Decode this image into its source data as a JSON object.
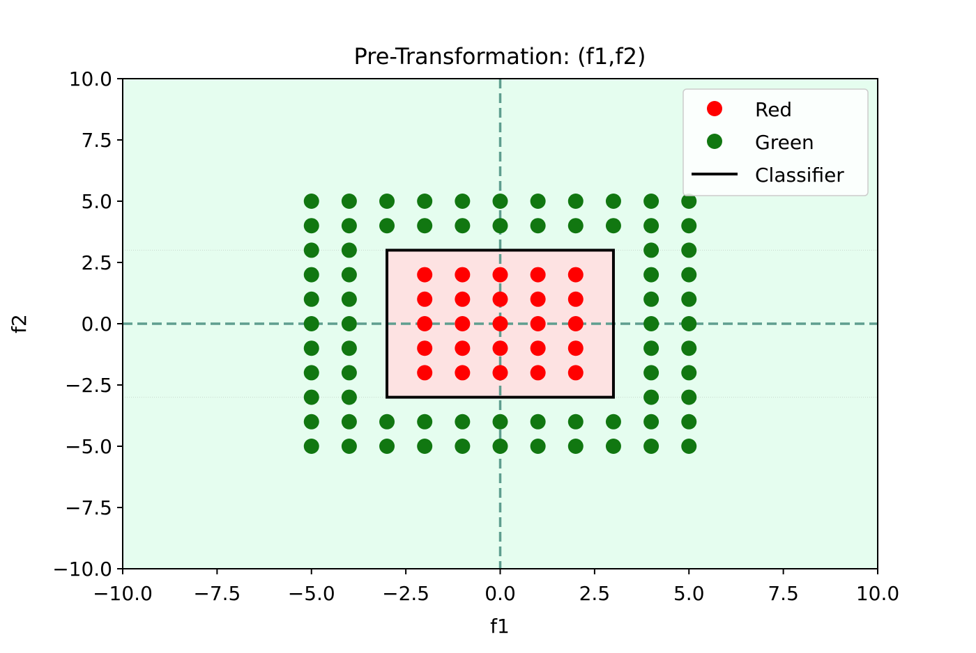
{
  "chart_data": {
    "type": "scatter",
    "title": "Pre-Transformation: (f1,f2)",
    "xlabel": "f1",
    "ylabel": "f2",
    "xlim": [
      -10,
      10
    ],
    "ylim": [
      -10,
      10
    ],
    "xticks": [
      -10,
      -7.5,
      -5,
      -2.5,
      0,
      2.5,
      5,
      7.5,
      10
    ],
    "yticks": [
      -10,
      -7.5,
      -5,
      -2.5,
      0,
      2.5,
      5,
      7.5,
      10
    ],
    "xtick_labels": [
      "−10.0",
      "−7.5",
      "−5.0",
      "−2.5",
      "0.0",
      "2.5",
      "5.0",
      "7.5",
      "10.0"
    ],
    "ytick_labels": [
      "−10.0",
      "−7.5",
      "−5.0",
      "−2.5",
      "0.0",
      "2.5",
      "5.0",
      "7.5",
      "10.0"
    ],
    "background_region_color": "#e5fdef",
    "classifier_region_color": "#fde2e2",
    "axis_line_color": "#5f9e8f",
    "legend_position": "top-right",
    "series": [
      {
        "name": "Red",
        "color": "#ff0000",
        "points": [
          [
            -2,
            2
          ],
          [
            -1,
            2
          ],
          [
            0,
            2
          ],
          [
            1,
            2
          ],
          [
            2,
            2
          ],
          [
            -2,
            1
          ],
          [
            -1,
            1
          ],
          [
            0,
            1
          ],
          [
            1,
            1
          ],
          [
            2,
            1
          ],
          [
            -2,
            0
          ],
          [
            -1,
            0
          ],
          [
            0,
            0
          ],
          [
            1,
            0
          ],
          [
            2,
            0
          ],
          [
            -2,
            -1
          ],
          [
            -1,
            -1
          ],
          [
            0,
            -1
          ],
          [
            1,
            -1
          ],
          [
            2,
            -1
          ],
          [
            -2,
            -2
          ],
          [
            -1,
            -2
          ],
          [
            0,
            -2
          ],
          [
            1,
            -2
          ],
          [
            2,
            -2
          ]
        ]
      },
      {
        "name": "Green",
        "color": "#117711",
        "points": [
          [
            -5,
            5
          ],
          [
            -4,
            5
          ],
          [
            -3,
            5
          ],
          [
            -2,
            5
          ],
          [
            -1,
            5
          ],
          [
            0,
            5
          ],
          [
            1,
            5
          ],
          [
            2,
            5
          ],
          [
            3,
            5
          ],
          [
            4,
            5
          ],
          [
            5,
            5
          ],
          [
            -5,
            4
          ],
          [
            -4,
            4
          ],
          [
            -3,
            4
          ],
          [
            -2,
            4
          ],
          [
            -1,
            4
          ],
          [
            0,
            4
          ],
          [
            1,
            4
          ],
          [
            2,
            4
          ],
          [
            3,
            4
          ],
          [
            4,
            4
          ],
          [
            5,
            4
          ],
          [
            -5,
            3
          ],
          [
            -4,
            3
          ],
          [
            4,
            3
          ],
          [
            5,
            3
          ],
          [
            -5,
            2
          ],
          [
            -4,
            2
          ],
          [
            4,
            2
          ],
          [
            5,
            2
          ],
          [
            -5,
            1
          ],
          [
            -4,
            1
          ],
          [
            4,
            1
          ],
          [
            5,
            1
          ],
          [
            -5,
            0
          ],
          [
            -4,
            0
          ],
          [
            4,
            0
          ],
          [
            5,
            0
          ],
          [
            -5,
            -1
          ],
          [
            -4,
            -1
          ],
          [
            4,
            -1
          ],
          [
            5,
            -1
          ],
          [
            -5,
            -2
          ],
          [
            -4,
            -2
          ],
          [
            4,
            -2
          ],
          [
            5,
            -2
          ],
          [
            -5,
            -3
          ],
          [
            -4,
            -3
          ],
          [
            4,
            -3
          ],
          [
            5,
            -3
          ],
          [
            -5,
            -4
          ],
          [
            -4,
            -4
          ],
          [
            -3,
            -4
          ],
          [
            -2,
            -4
          ],
          [
            -1,
            -4
          ],
          [
            0,
            -4
          ],
          [
            1,
            -4
          ],
          [
            2,
            -4
          ],
          [
            3,
            -4
          ],
          [
            4,
            -4
          ],
          [
            5,
            -4
          ],
          [
            -5,
            -5
          ],
          [
            -4,
            -5
          ],
          [
            -3,
            -5
          ],
          [
            -2,
            -5
          ],
          [
            -1,
            -5
          ],
          [
            0,
            -5
          ],
          [
            1,
            -5
          ],
          [
            2,
            -5
          ],
          [
            3,
            -5
          ],
          [
            4,
            -5
          ],
          [
            5,
            -5
          ]
        ]
      }
    ],
    "classifier": {
      "name": "Classifier",
      "color": "#000000",
      "rect": {
        "x": [
          -3,
          3
        ],
        "y": [
          -3,
          3
        ]
      }
    }
  }
}
